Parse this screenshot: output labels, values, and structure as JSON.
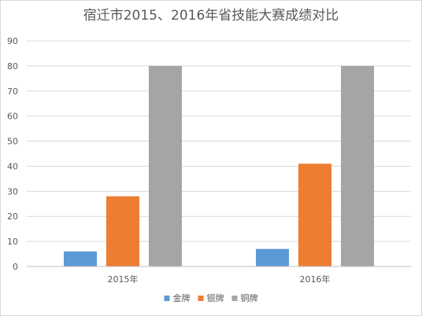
{
  "chart_data": {
    "type": "bar",
    "title": "宿迁市2015、2016年省技能大赛成绩对比",
    "categories": [
      "2015年",
      "2016年"
    ],
    "series": [
      {
        "name": "金牌",
        "values": [
          6,
          7
        ],
        "color": "#5b9bd5"
      },
      {
        "name": "银牌",
        "values": [
          28,
          41
        ],
        "color": "#ed7d31"
      },
      {
        "name": "铜牌",
        "values": [
          80,
          80
        ],
        "color": "#a5a5a5"
      }
    ],
    "ylim": [
      0,
      90
    ],
    "yticks": [
      0,
      10,
      20,
      30,
      40,
      50,
      60,
      70,
      80,
      90
    ],
    "grid": true,
    "legend_position": "bottom",
    "xlabel": "",
    "ylabel": ""
  }
}
